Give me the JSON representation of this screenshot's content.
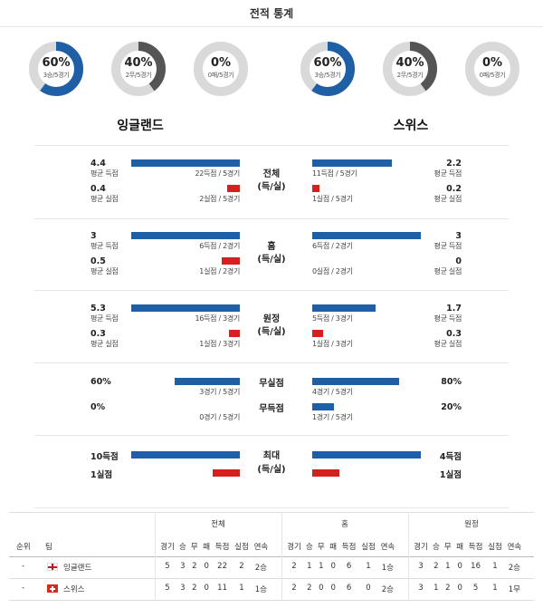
{
  "page_title": "전적 통계",
  "teams": {
    "home": {
      "name": "잉글랜드",
      "donuts": [
        {
          "pct": "60%",
          "sub": "3승/5경기",
          "value": 0.6,
          "color": "#1f5fa6"
        },
        {
          "pct": "40%",
          "sub": "2무/5경기",
          "value": 0.4,
          "color": "#555555"
        },
        {
          "pct": "0%",
          "sub": "0패/5경기",
          "value": 0.0,
          "color": "#d61f1f"
        }
      ]
    },
    "away": {
      "name": "스위스",
      "donuts": [
        {
          "pct": "60%",
          "sub": "3승/5경기",
          "value": 0.6,
          "color": "#1f5fa6"
        },
        {
          "pct": "40%",
          "sub": "2무/5경기",
          "value": 0.4,
          "color": "#555555"
        },
        {
          "pct": "0%",
          "sub": "0패/5경기",
          "value": 0.0,
          "color": "#d61f1f"
        }
      ]
    }
  },
  "sections": [
    {
      "category": [
        "전체",
        "(득/실)"
      ],
      "home": [
        {
          "value": "4.4",
          "label": "평균 득점",
          "caption": "22득점 / 5경기",
          "bar": 0.6,
          "color": "blue"
        },
        {
          "value": "0.4",
          "label": "평균 실점",
          "caption": "2실점 / 5경기",
          "bar": 0.07,
          "color": "red"
        }
      ],
      "away": [
        {
          "value": "2.2",
          "label": "평균 득점",
          "caption": "11득점 / 5경기",
          "bar": 0.44,
          "color": "blue"
        },
        {
          "value": "0.2",
          "label": "평균 실점",
          "caption": "1실점 / 5경기",
          "bar": 0.04,
          "color": "red"
        }
      ]
    },
    {
      "category": [
        "홈",
        "(득/실)"
      ],
      "home": [
        {
          "value": "3",
          "label": "평균 득점",
          "caption": "6득점 / 2경기",
          "bar": 0.6,
          "color": "blue"
        },
        {
          "value": "0.5",
          "label": "평균 실점",
          "caption": "1실점 / 2경기",
          "bar": 0.1,
          "color": "red"
        }
      ],
      "away": [
        {
          "value": "3",
          "label": "평균 득점",
          "caption": "6득점 / 2경기",
          "bar": 0.6,
          "color": "blue"
        },
        {
          "value": "0",
          "label": "평균 실점",
          "caption": "0실점 / 2경기",
          "bar": 0.0,
          "color": "red"
        }
      ]
    },
    {
      "category": [
        "원정",
        "(득/실)"
      ],
      "home": [
        {
          "value": "5.3",
          "label": "평균 득점",
          "caption": "16득점 / 3경기",
          "bar": 0.6,
          "color": "blue"
        },
        {
          "value": "0.3",
          "label": "평균 실점",
          "caption": "1실점 / 3경기",
          "bar": 0.06,
          "color": "red"
        }
      ],
      "away": [
        {
          "value": "1.7",
          "label": "평균 득점",
          "caption": "5득점 / 3경기",
          "bar": 0.35,
          "color": "blue"
        },
        {
          "value": "0.3",
          "label": "평균 실점",
          "caption": "1실점 / 3경기",
          "bar": 0.06,
          "color": "red"
        }
      ]
    }
  ],
  "rates": {
    "rows": [
      {
        "category": "무실점",
        "home_value": "60%",
        "home_caption": "3경기 / 5경기",
        "home_bar": 0.6,
        "away_value": "80%",
        "away_caption": "4경기 / 5경기",
        "away_bar": 0.8
      },
      {
        "category": "무득점",
        "home_value": "0%",
        "home_caption": "0경기 / 5경기",
        "home_bar": 0.0,
        "away_value": "20%",
        "away_caption": "1경기 / 5경기",
        "away_bar": 0.2
      }
    ]
  },
  "max": {
    "category": [
      "최대",
      "(득/실)"
    ],
    "home": [
      {
        "value": "10득점",
        "bar": 1.0,
        "color": "blue"
      },
      {
        "value": "1실점",
        "bar": 0.25,
        "color": "red"
      }
    ],
    "away": [
      {
        "value": "4득점",
        "bar": 1.0,
        "color": "blue"
      },
      {
        "value": "1실점",
        "bar": 0.25,
        "color": "red"
      }
    ]
  },
  "table": {
    "group_headers": [
      "전체",
      "홈",
      "원정"
    ],
    "col_rank": "순위",
    "col_team": "팀",
    "sub_headers": [
      "경기",
      "승",
      "무",
      "패",
      "득점",
      "실점",
      "연속"
    ],
    "rows": [
      {
        "rank": "-",
        "team": "잉글랜드",
        "flag": "england",
        "total": [
          "5",
          "3",
          "2",
          "0",
          "22",
          "2",
          "2승"
        ],
        "home": [
          "2",
          "1",
          "1",
          "0",
          "6",
          "1",
          "1승"
        ],
        "away": [
          "3",
          "2",
          "1",
          "0",
          "16",
          "1",
          "2승"
        ]
      },
      {
        "rank": "-",
        "team": "스위스",
        "flag": "switzerland",
        "total": [
          "5",
          "3",
          "2",
          "0",
          "11",
          "1",
          "1승"
        ],
        "home": [
          "2",
          "2",
          "0",
          "0",
          "6",
          "0",
          "2승"
        ],
        "away": [
          "3",
          "1",
          "2",
          "0",
          "5",
          "1",
          "1무"
        ]
      }
    ]
  }
}
